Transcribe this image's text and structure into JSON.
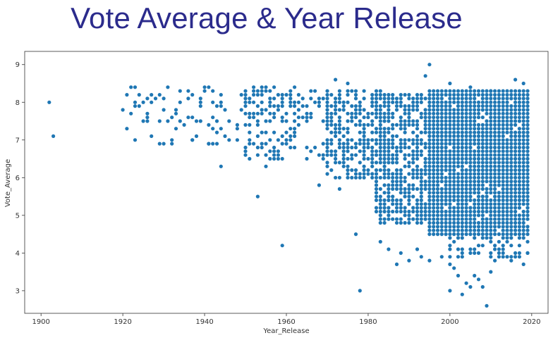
{
  "chart_data": {
    "type": "scatter",
    "title": "Vote Average & Year Release",
    "xlabel": "Year_Release",
    "ylabel": "Vote_Average",
    "xlim": [
      1896,
      2024
    ],
    "ylim": [
      2.4,
      9.35
    ],
    "xticks": [
      1900,
      1920,
      1940,
      1960,
      1980,
      2000,
      2020
    ],
    "yticks": [
      3,
      4,
      5,
      6,
      7,
      8,
      9
    ],
    "grid": false,
    "legend": "none",
    "marker_color": "#1f77b4",
    "points": [
      [
        1902,
        8.0
      ],
      [
        1903,
        7.1
      ],
      [
        1920,
        7.8
      ],
      [
        1921,
        8.2
      ],
      [
        1922,
        7.7
      ],
      [
        1923,
        7.9
      ],
      [
        1924,
        8.2
      ],
      [
        1925,
        8.0
      ],
      [
        1926,
        7.6
      ],
      [
        1926,
        8.1
      ],
      [
        1927,
        8.2
      ],
      [
        1928,
        8.1
      ],
      [
        1929,
        7.5
      ],
      [
        1930,
        7.8
      ],
      [
        1931,
        8.4
      ],
      [
        1931,
        7.5
      ],
      [
        1932,
        7.6
      ],
      [
        1932,
        6.9
      ],
      [
        1933,
        7.7
      ],
      [
        1934,
        7.5
      ],
      [
        1935,
        7.4
      ],
      [
        1936,
        8.3
      ],
      [
        1937,
        7.0
      ],
      [
        1938,
        7.5
      ],
      [
        1939,
        7.9
      ],
      [
        1940,
        8.4
      ],
      [
        1941,
        6.9
      ],
      [
        1942,
        7.3
      ],
      [
        1944,
        6.3
      ],
      [
        1946,
        7.5
      ],
      [
        1948,
        7.3
      ],
      [
        1950,
        6.7
      ],
      [
        1953,
        5.5
      ],
      [
        1955,
        6.3
      ],
      [
        1956,
        6.5
      ],
      [
        1959,
        4.2
      ],
      [
        1968,
        5.8
      ],
      [
        1972,
        8.6
      ],
      [
        1973,
        5.7
      ],
      [
        1975,
        8.5
      ],
      [
        1977,
        4.5
      ],
      [
        1978,
        3.0
      ],
      [
        1983,
        4.3
      ],
      [
        1985,
        4.1
      ],
      [
        1987,
        3.7
      ],
      [
        1988,
        4.0
      ],
      [
        1990,
        3.8
      ],
      [
        1992,
        4.1
      ],
      [
        1993,
        3.9
      ],
      [
        1995,
        3.8
      ],
      [
        1995,
        9.0
      ],
      [
        1994,
        8.7
      ],
      [
        1998,
        3.9
      ],
      [
        2000,
        3.0
      ],
      [
        2000,
        3.7
      ],
      [
        2001,
        3.6
      ],
      [
        2002,
        3.4
      ],
      [
        2003,
        2.9
      ],
      [
        2004,
        3.2
      ],
      [
        2005,
        3.1
      ],
      [
        2006,
        3.4
      ],
      [
        2007,
        3.3
      ],
      [
        2008,
        3.1
      ],
      [
        2009,
        2.6
      ],
      [
        2010,
        3.5
      ],
      [
        2011,
        3.8
      ],
      [
        2013,
        3.9
      ],
      [
        2015,
        3.8
      ],
      [
        2016,
        4.0
      ],
      [
        2017,
        3.9
      ],
      [
        2018,
        3.7
      ],
      [
        2019,
        4.0
      ],
      [
        2016,
        8.6
      ],
      [
        2018,
        8.5
      ],
      [
        2000,
        8.5
      ],
      [
        2005,
        8.4
      ],
      [
        2010,
        8.3
      ]
    ],
    "dense_regions": [
      {
        "x": [
          1920,
          1960
        ],
        "y": [
          6.9,
          8.4
        ],
        "density": 0.12
      },
      {
        "x": [
          1950,
          1970
        ],
        "y": [
          6.5,
          8.4
        ],
        "density": 0.3
      },
      {
        "x": [
          1970,
          1985
        ],
        "y": [
          6.0,
          8.3
        ],
        "density": 0.55
      },
      {
        "x": [
          1982,
          1998
        ],
        "y": [
          4.8,
          8.2
        ],
        "density": 0.7
      },
      {
        "x": [
          1995,
          2019
        ],
        "y": [
          4.5,
          8.3
        ],
        "density": 0.97
      },
      {
        "x": [
          2000,
          2019
        ],
        "y": [
          3.9,
          4.6
        ],
        "density": 0.45
      }
    ]
  }
}
